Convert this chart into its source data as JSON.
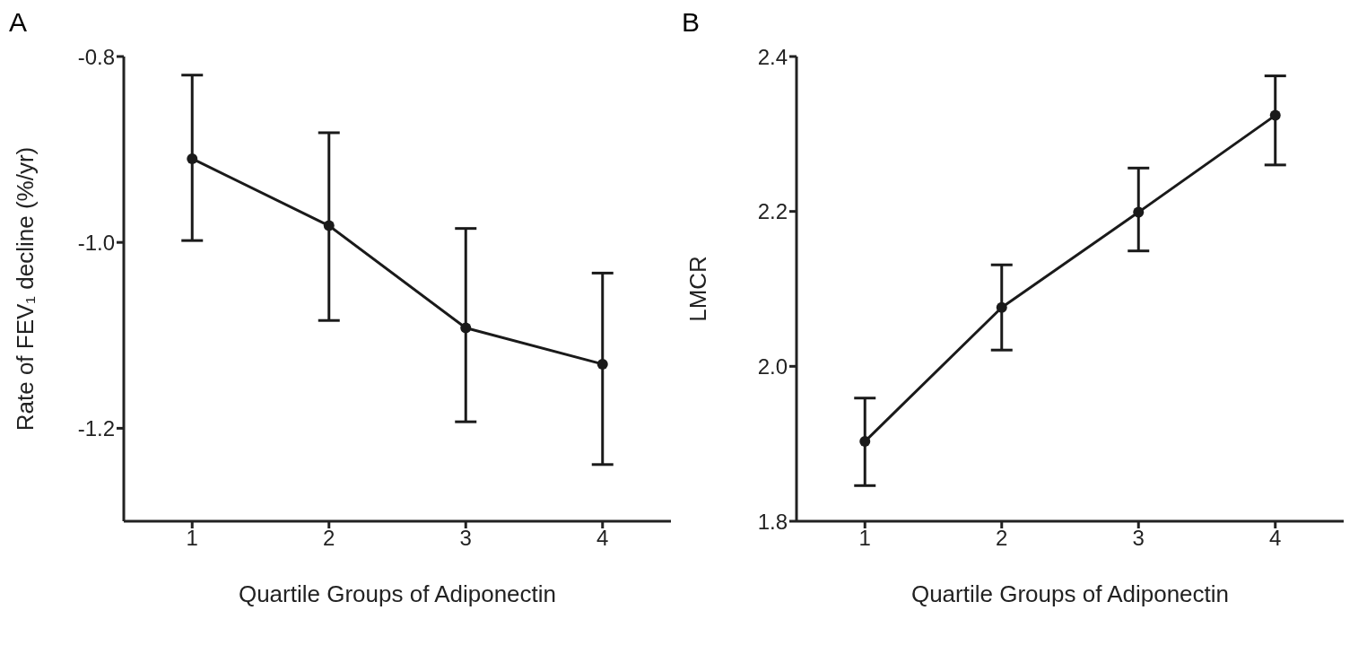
{
  "chart_data": [
    {
      "type": "line",
      "title": "A",
      "xlabel": "Quartile Groups of Adiponectin",
      "ylabel": "Rate of FEV₁ decline (%/yr)",
      "categories": [
        "1",
        "2",
        "3",
        "4"
      ],
      "marker": "circle",
      "ylim": [
        -1.3,
        -0.8
      ],
      "yticks": [
        -0.8,
        {
          "value": -1,
          "label": "-1.0"
        },
        -1.2
      ],
      "series": [
        {
          "color": "#1a1a1a",
          "values": [
            -0.91,
            -0.982,
            -1.092,
            -1.131
          ],
          "errors": [
            [
              -0.998,
              -0.82
            ],
            [
              -1.084,
              -0.882
            ],
            [
              -1.193,
              -0.985
            ],
            [
              -1.239,
              -1.033
            ]
          ]
        }
      ]
    },
    {
      "type": "line",
      "title": "B",
      "xlabel": "Quartile Groups of Adiponectin",
      "ylabel": "LMCR",
      "categories": [
        "1",
        "2",
        "3",
        "4"
      ],
      "marker": "circle",
      "ylim": [
        1.8,
        2.4
      ],
      "yticks": [
        1.8,
        {
          "value": 2,
          "label": "2.0"
        },
        2.2,
        2.4
      ],
      "series": [
        {
          "color": "#1a1a1a",
          "values": [
            1.903,
            2.076,
            2.199,
            2.324
          ],
          "errors": [
            [
              1.846,
              1.959
            ],
            [
              2.021,
              2.131
            ],
            [
              2.149,
              2.256
            ],
            [
              2.26,
              2.375
            ]
          ]
        }
      ]
    }
  ]
}
